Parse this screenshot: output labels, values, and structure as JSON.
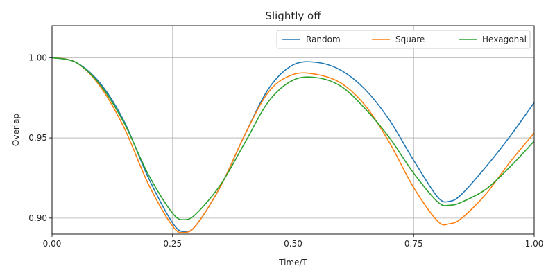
{
  "chart_data": {
    "type": "line",
    "title": "Slightly off",
    "xlabel": "Time/T",
    "ylabel": "Overlap",
    "xlim": [
      0,
      1
    ],
    "ylim": [
      0.89,
      1.02
    ],
    "xticks": [
      0.0,
      0.25,
      0.5,
      0.75,
      1.0
    ],
    "xtick_labels": [
      "0.00",
      "0.25",
      "0.50",
      "0.75",
      "1.00"
    ],
    "yticks": [
      0.9,
      0.95,
      1.0
    ],
    "ytick_labels": [
      "0.90",
      "0.95",
      "1.00"
    ],
    "grid": true,
    "legend_position": "top-right",
    "series": [
      {
        "name": "Random",
        "color": "#1f77b4",
        "x": [
          0.0,
          0.05,
          0.1,
          0.15,
          0.2,
          0.25,
          0.275,
          0.3,
          0.35,
          0.4,
          0.45,
          0.5,
          0.55,
          0.6,
          0.65,
          0.7,
          0.75,
          0.8,
          0.825,
          0.85,
          0.9,
          0.95,
          1.0
        ],
        "y": [
          1.0,
          0.997,
          0.984,
          0.96,
          0.925,
          0.897,
          0.8915,
          0.896,
          0.92,
          0.952,
          0.981,
          0.9955,
          0.997,
          0.992,
          0.98,
          0.961,
          0.936,
          0.913,
          0.9105,
          0.915,
          0.932,
          0.951,
          0.972
        ]
      },
      {
        "name": "Square",
        "color": "#ff7f0e",
        "x": [
          0.0,
          0.05,
          0.1,
          0.15,
          0.2,
          0.25,
          0.275,
          0.3,
          0.35,
          0.4,
          0.45,
          0.5,
          0.55,
          0.6,
          0.65,
          0.7,
          0.75,
          0.8,
          0.825,
          0.85,
          0.9,
          0.95,
          1.0
        ],
        "y": [
          1.0,
          0.997,
          0.982,
          0.956,
          0.921,
          0.895,
          0.891,
          0.896,
          0.92,
          0.952,
          0.979,
          0.9895,
          0.9895,
          0.984,
          0.97,
          0.947,
          0.919,
          0.898,
          0.8965,
          0.9,
          0.915,
          0.935,
          0.953
        ]
      },
      {
        "name": "Hexagonal",
        "color": "#2ca02c",
        "x": [
          0.0,
          0.05,
          0.1,
          0.15,
          0.2,
          0.25,
          0.275,
          0.3,
          0.35,
          0.4,
          0.45,
          0.5,
          0.55,
          0.6,
          0.65,
          0.7,
          0.75,
          0.8,
          0.825,
          0.85,
          0.9,
          0.95,
          1.0
        ],
        "y": [
          1.0,
          0.997,
          0.983,
          0.959,
          0.927,
          0.903,
          0.899,
          0.903,
          0.921,
          0.947,
          0.973,
          0.986,
          0.9875,
          0.982,
          0.968,
          0.95,
          0.928,
          0.91,
          0.908,
          0.91,
          0.918,
          0.932,
          0.948
        ]
      }
    ]
  }
}
